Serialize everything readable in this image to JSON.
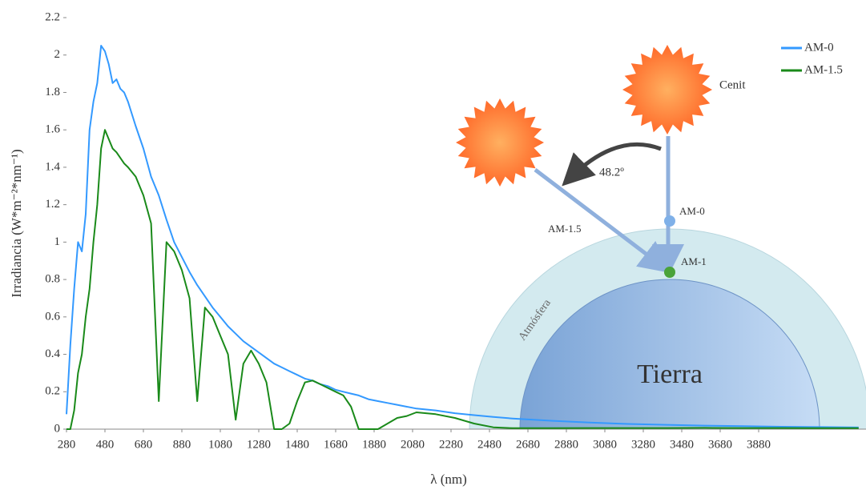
{
  "chart_data": {
    "type": "line",
    "xlabel": "λ (nm)",
    "ylabel": "Irradiancia (W*m⁻²*nm⁻¹)",
    "x": [
      280,
      300,
      320,
      340,
      360,
      380,
      400,
      420,
      440,
      460,
      480,
      500,
      520,
      540,
      560,
      580,
      600,
      640,
      680,
      720,
      760,
      800,
      840,
      880,
      920,
      960,
      1000,
      1040,
      1080,
      1120,
      1160,
      1200,
      1240,
      1280,
      1320,
      1360,
      1400,
      1440,
      1480,
      1520,
      1560,
      1600,
      1640,
      1680,
      1720,
      1760,
      1800,
      1850,
      1900,
      1950,
      2000,
      2050,
      2100,
      2200,
      2300,
      2400,
      2500,
      2600,
      2800,
      3000,
      3200,
      3400,
      3600,
      3800,
      4000,
      4200,
      4400
    ],
    "series": [
      {
        "name": "AM-0",
        "color": "#3399ff",
        "values": [
          0.08,
          0.45,
          0.75,
          1.0,
          0.95,
          1.15,
          1.6,
          1.75,
          1.85,
          2.05,
          2.02,
          1.95,
          1.85,
          1.87,
          1.82,
          1.8,
          1.75,
          1.62,
          1.5,
          1.35,
          1.25,
          1.12,
          1.0,
          0.92,
          0.84,
          0.77,
          0.71,
          0.65,
          0.6,
          0.55,
          0.51,
          0.47,
          0.44,
          0.41,
          0.38,
          0.35,
          0.33,
          0.31,
          0.29,
          0.27,
          0.26,
          0.24,
          0.23,
          0.21,
          0.2,
          0.19,
          0.18,
          0.16,
          0.15,
          0.14,
          0.13,
          0.12,
          0.11,
          0.1,
          0.085,
          0.075,
          0.065,
          0.057,
          0.045,
          0.035,
          0.028,
          0.023,
          0.019,
          0.016,
          0.013,
          0.011,
          0.009
        ]
      },
      {
        "name": "AM-1.5",
        "color": "#1a8a1a",
        "values": [
          0,
          0,
          0.1,
          0.3,
          0.4,
          0.6,
          0.75,
          1.0,
          1.2,
          1.5,
          1.6,
          1.55,
          1.5,
          1.48,
          1.45,
          1.42,
          1.4,
          1.35,
          1.25,
          1.1,
          0.15,
          1.0,
          0.95,
          0.85,
          0.7,
          0.15,
          0.65,
          0.6,
          0.5,
          0.4,
          0.05,
          0.35,
          0.42,
          0.35,
          0.25,
          0,
          0,
          0.03,
          0.15,
          0.25,
          0.26,
          0.24,
          0.22,
          0.2,
          0.18,
          0.12,
          0,
          0,
          0,
          0.03,
          0.06,
          0.07,
          0.09,
          0.08,
          0.06,
          0.03,
          0.01,
          0.005,
          0.005,
          0.006,
          0.006,
          0.006,
          0.007,
          0.006,
          0.006,
          0.005,
          0.005
        ]
      }
    ],
    "xlim": [
      280,
      4440
    ],
    "xticks": [
      280,
      480,
      680,
      880,
      1080,
      1280,
      1480,
      1680,
      1880,
      2080,
      2280,
      2480,
      2680,
      2880,
      3080,
      3280,
      3480,
      3680,
      3880
    ],
    "ylim": [
      0,
      2.2
    ],
    "yticks": [
      0,
      0.2,
      0.4,
      0.6,
      0.8,
      1,
      1.2,
      1.4,
      1.6,
      1.8,
      2,
      2.2
    ],
    "legend": "upper right",
    "annotations": [
      "Cenit",
      "48.2º",
      "AM-0",
      "AM-1.5",
      "AM-1",
      "Atmósfera",
      "Tierra"
    ]
  }
}
